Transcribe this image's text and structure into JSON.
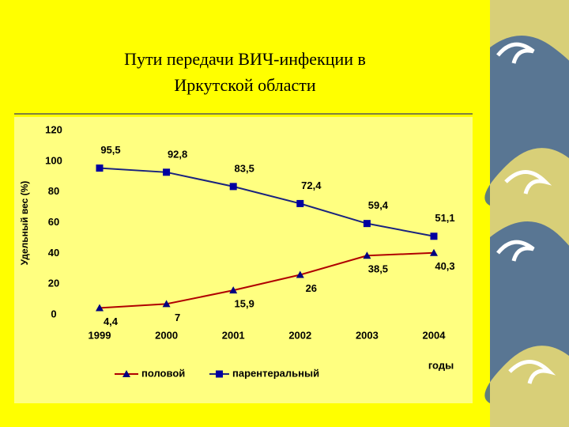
{
  "chart_data": {
    "type": "line",
    "title": "Пути передачи  ВИЧ-инфекции в Иркутской области",
    "y_label": "Удельный вес (%)",
    "x_label": "годы",
    "categories": [
      "1999",
      "2000",
      "2001",
      "2002",
      "2003",
      "2004"
    ],
    "series": [
      {
        "name": "половой",
        "color": "#b00000",
        "marker_color": "#000080",
        "marker": "triangle",
        "values": [
          4.4,
          7,
          15.9,
          26,
          38.5,
          40.3
        ],
        "value_labels": [
          "4,4",
          "7",
          "15,9",
          "26",
          "38,5",
          "40,3"
        ]
      },
      {
        "name": "парентеральный",
        "color": "#1a237e",
        "marker_color": "#0000a0",
        "marker": "square",
        "values": [
          95.5,
          92.8,
          83.5,
          72.4,
          59.4,
          51.1
        ],
        "value_labels": [
          "95,5",
          "92,8",
          "83,5",
          "72,4",
          "59,4",
          "51,1"
        ]
      }
    ],
    "ylim": [
      0,
      120
    ],
    "yticks": [
      0,
      20,
      40,
      60,
      80,
      100,
      120
    ],
    "grid": false
  }
}
